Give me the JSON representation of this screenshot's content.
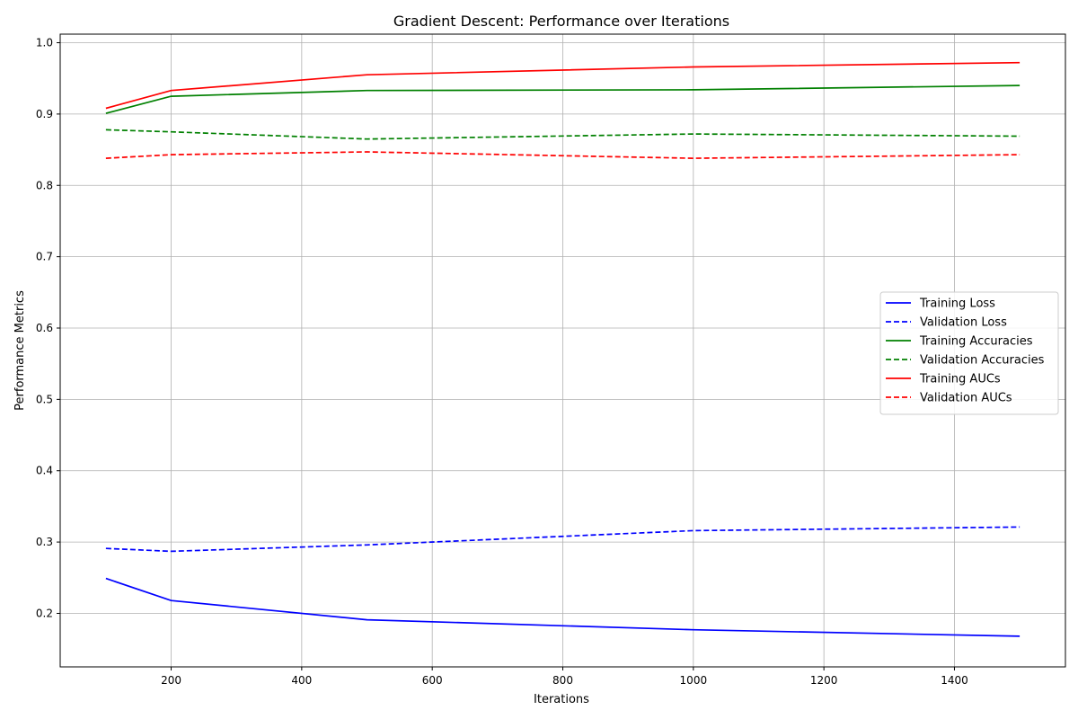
{
  "chart_data": {
    "type": "line",
    "title": "Gradient Descent: Performance over Iterations",
    "xlabel": "Iterations",
    "ylabel": "Performance Metrics",
    "xlim": [
      30,
      1570
    ],
    "ylim": [
      0.125,
      1.012
    ],
    "xticks": [
      200,
      400,
      600,
      800,
      1000,
      1200,
      1400
    ],
    "yticks": [
      0.2,
      0.3,
      0.4,
      0.5,
      0.6,
      0.7,
      0.8,
      0.9,
      1.0
    ],
    "ytick_labels": [
      "0.2",
      "0.3",
      "0.4",
      "0.5",
      "0.6",
      "0.7",
      "0.8",
      "0.9",
      "1.0"
    ],
    "grid": true,
    "legend_position": "center-right",
    "x": [
      100,
      200,
      500,
      1000,
      1500
    ],
    "series": [
      {
        "name": "Training Loss",
        "color": "#0000ff",
        "style": "solid",
        "values": [
          0.249,
          0.218,
          0.191,
          0.177,
          0.168
        ]
      },
      {
        "name": "Validation Loss",
        "color": "#0000ff",
        "style": "dashed",
        "values": [
          0.291,
          0.287,
          0.296,
          0.316,
          0.321
        ]
      },
      {
        "name": "Training Accuracies",
        "color": "#008000",
        "style": "solid",
        "values": [
          0.901,
          0.925,
          0.933,
          0.934,
          0.94
        ]
      },
      {
        "name": "Validation Accuracies",
        "color": "#008000",
        "style": "dashed",
        "values": [
          0.878,
          0.875,
          0.865,
          0.872,
          0.869
        ]
      },
      {
        "name": "Training AUCs",
        "color": "#ff0000",
        "style": "solid",
        "values": [
          0.908,
          0.933,
          0.955,
          0.966,
          0.972
        ]
      },
      {
        "name": "Validation AUCs",
        "color": "#ff0000",
        "style": "dashed",
        "values": [
          0.838,
          0.843,
          0.847,
          0.838,
          0.843
        ]
      }
    ]
  }
}
